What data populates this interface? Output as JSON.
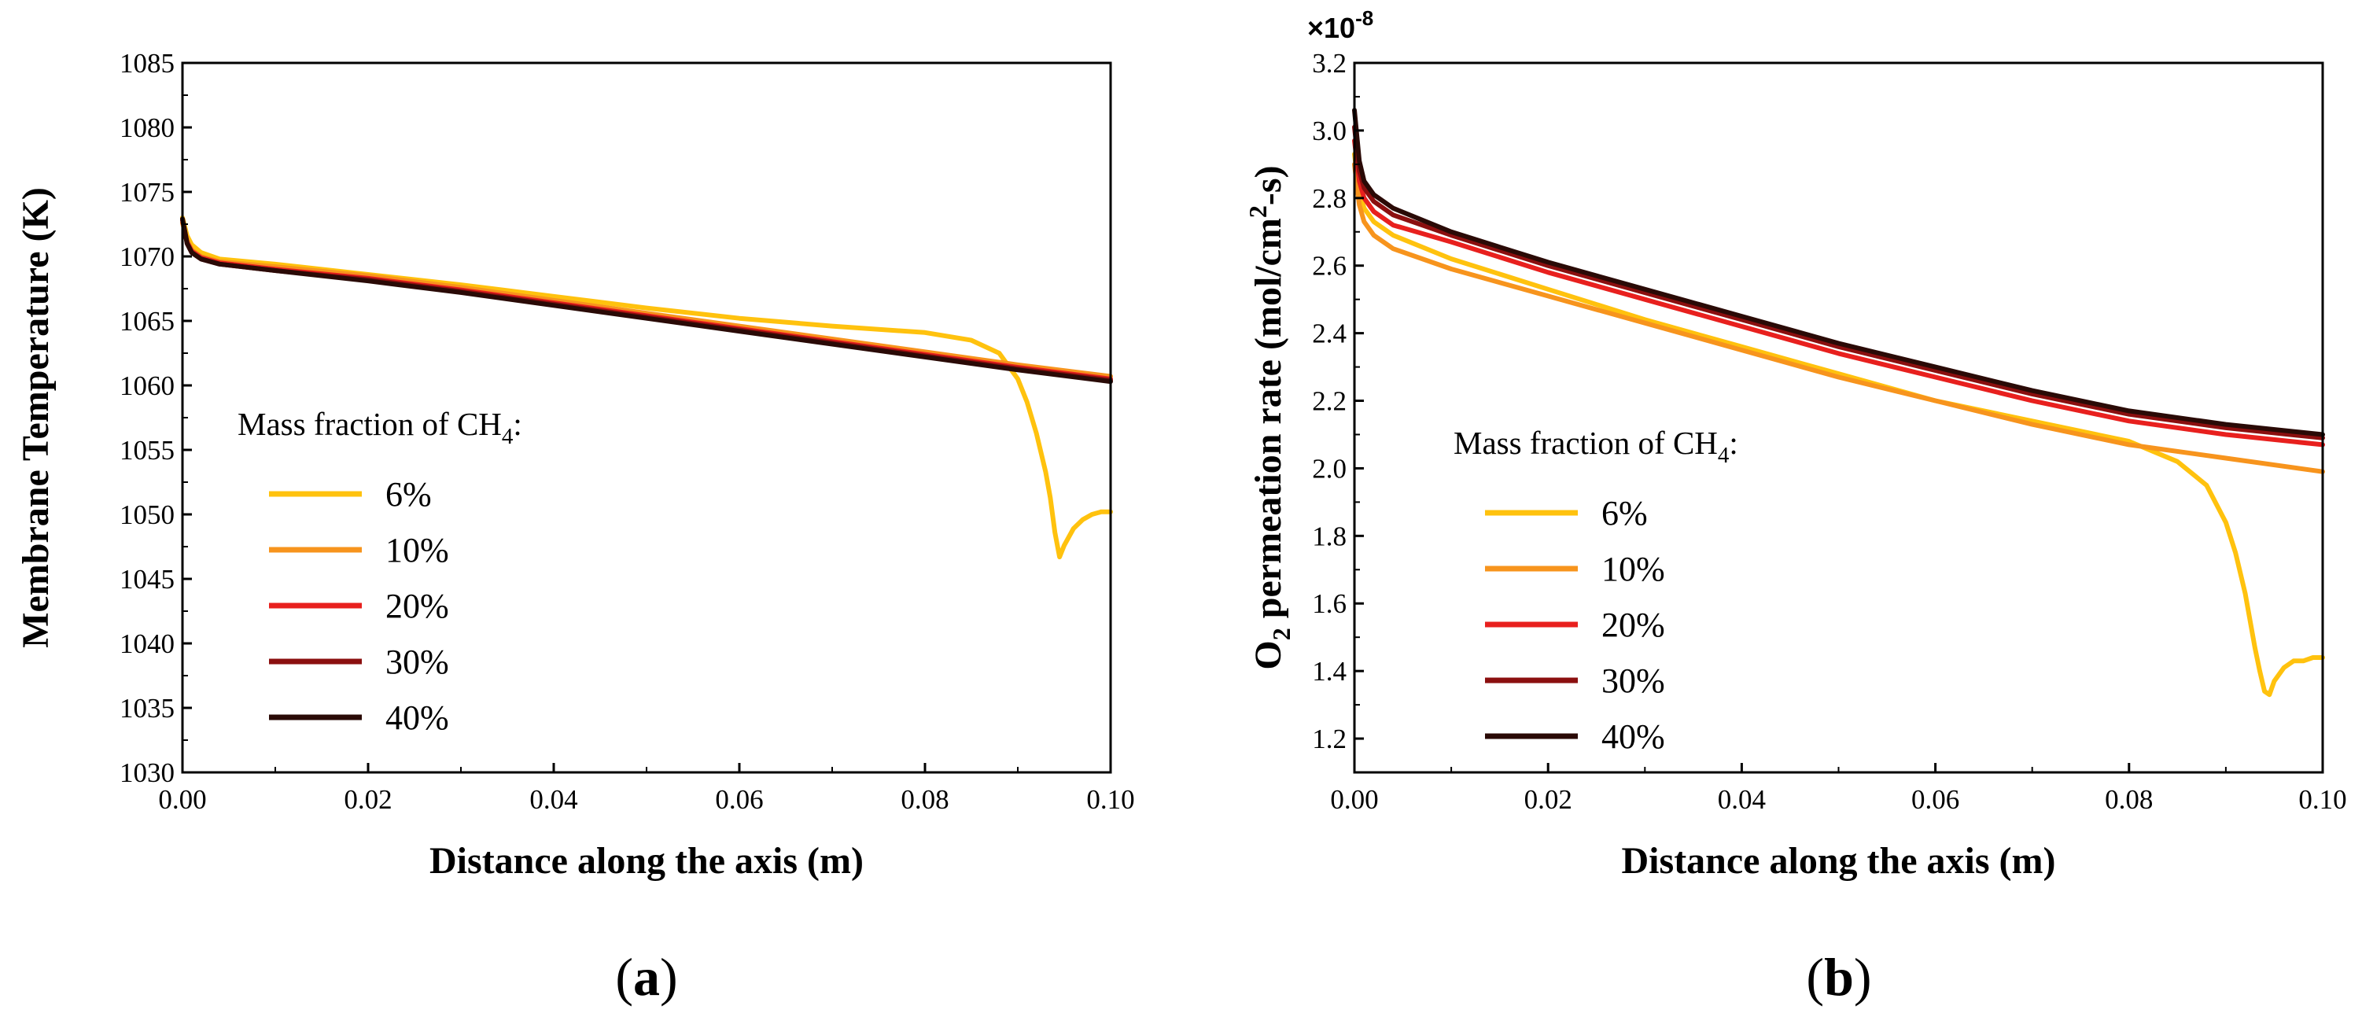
{
  "chart_data": [
    {
      "type": "line",
      "panel_label": "(a)",
      "xlabel": "Distance along the axis (m)",
      "ylabel": "Membrane Temperature (K)",
      "xlim": [
        0,
        0.1
      ],
      "ylim": [
        1030,
        1085
      ],
      "xticks": [
        0,
        0.02,
        0.04,
        0.06,
        0.08,
        0.1
      ],
      "xtick_labels": [
        "0.00",
        "0.02",
        "0.04",
        "0.06",
        "0.08",
        "0.10"
      ],
      "yticks": [
        1030,
        1035,
        1040,
        1045,
        1050,
        1055,
        1060,
        1065,
        1070,
        1075,
        1080,
        1085
      ],
      "ytick_labels": [
        "1030",
        "1035",
        "1040",
        "1045",
        "1050",
        "1055",
        "1060",
        "1065",
        "1070",
        "1075",
        "1080",
        "1085"
      ],
      "legend_title": "Mass fraction of CH",
      "legend_title_sub": "4",
      "legend_title_suffix": ":",
      "legend_position": "lower-left",
      "grid": false,
      "series": [
        {
          "name": "6%",
          "color": "#FFC20E",
          "x": [
            0,
            0.0005,
            0.001,
            0.002,
            0.004,
            0.01,
            0.02,
            0.03,
            0.04,
            0.05,
            0.06,
            0.07,
            0.08,
            0.085,
            0.088,
            0.09,
            0.091,
            0.092,
            0.093,
            0.0935,
            0.094,
            0.0945,
            0.095,
            0.096,
            0.097,
            0.098,
            0.099,
            0.1
          ],
          "y": [
            1073.0,
            1071.6,
            1070.9,
            1070.3,
            1069.8,
            1069.4,
            1068.6,
            1067.8,
            1066.9,
            1066.0,
            1065.2,
            1064.6,
            1064.1,
            1063.5,
            1062.5,
            1060.5,
            1058.7,
            1056.3,
            1053.3,
            1051.3,
            1048.6,
            1046.7,
            1047.6,
            1048.9,
            1049.6,
            1050.0,
            1050.2,
            1050.2
          ]
        },
        {
          "name": "10%",
          "color": "#F7941D",
          "x": [
            0,
            0.0005,
            0.001,
            0.002,
            0.004,
            0.01,
            0.02,
            0.03,
            0.04,
            0.05,
            0.06,
            0.07,
            0.08,
            0.09,
            0.1
          ],
          "y": [
            1072.6,
            1071.2,
            1070.5,
            1070.0,
            1069.6,
            1069.2,
            1068.5,
            1067.6,
            1066.6,
            1065.6,
            1064.6,
            1063.6,
            1062.6,
            1061.6,
            1060.7
          ]
        },
        {
          "name": "20%",
          "color": "#E8201E",
          "x": [
            0,
            0.0005,
            0.001,
            0.002,
            0.004,
            0.01,
            0.02,
            0.03,
            0.04,
            0.05,
            0.06,
            0.07,
            0.08,
            0.09,
            0.1
          ],
          "y": [
            1072.8,
            1071.1,
            1070.4,
            1069.9,
            1069.5,
            1069.0,
            1068.3,
            1067.4,
            1066.4,
            1065.4,
            1064.4,
            1063.4,
            1062.4,
            1061.4,
            1060.5
          ]
        },
        {
          "name": "30%",
          "color": "#8B0F0F",
          "x": [
            0,
            0.0005,
            0.001,
            0.002,
            0.004,
            0.01,
            0.02,
            0.03,
            0.04,
            0.05,
            0.06,
            0.07,
            0.08,
            0.09,
            0.1
          ],
          "y": [
            1072.9,
            1071.0,
            1070.3,
            1069.8,
            1069.4,
            1068.9,
            1068.2,
            1067.3,
            1066.3,
            1065.3,
            1064.3,
            1063.3,
            1062.3,
            1061.3,
            1060.4
          ]
        },
        {
          "name": "40%",
          "color": "#2A0A06",
          "x": [
            0,
            0.0005,
            0.001,
            0.002,
            0.004,
            0.01,
            0.02,
            0.03,
            0.04,
            0.05,
            0.06,
            0.07,
            0.08,
            0.09,
            0.1
          ],
          "y": [
            1072.9,
            1071.0,
            1070.3,
            1069.8,
            1069.4,
            1068.9,
            1068.1,
            1067.2,
            1066.2,
            1065.2,
            1064.2,
            1063.2,
            1062.2,
            1061.2,
            1060.3
          ]
        }
      ]
    },
    {
      "type": "line",
      "panel_label": "(b)",
      "xlabel": "Distance along the axis (m)",
      "ylabel": "O2 permeation rate (mol/cm2-s)",
      "ylabel_parts": {
        "a": "O",
        "b": "2",
        "c": " permeation rate (mol/cm",
        "d": "2",
        "e": "-s)"
      },
      "y_multiplier": "×10",
      "y_multiplier_exp": "-8",
      "xlim": [
        0,
        0.1
      ],
      "ylim": [
        1.1,
        3.2
      ],
      "xticks": [
        0,
        0.02,
        0.04,
        0.06,
        0.08,
        0.1
      ],
      "xtick_labels": [
        "0.00",
        "0.02",
        "0.04",
        "0.06",
        "0.08",
        "0.10"
      ],
      "yticks": [
        1.2,
        1.4,
        1.6,
        1.8,
        2.0,
        2.2,
        2.4,
        2.6,
        2.8,
        3.0,
        3.2
      ],
      "ytick_labels": [
        "1.2",
        "1.4",
        "1.6",
        "1.8",
        "2.0",
        "2.2",
        "2.4",
        "2.6",
        "2.8",
        "3.0",
        "3.2"
      ],
      "legend_title": "Mass fraction of CH",
      "legend_title_sub": "4",
      "legend_title_suffix": ":",
      "legend_position": "lower-left",
      "grid": false,
      "series": [
        {
          "name": "6%",
          "color": "#FFC20E",
          "x": [
            0,
            0.0005,
            0.001,
            0.002,
            0.004,
            0.01,
            0.02,
            0.03,
            0.04,
            0.05,
            0.06,
            0.07,
            0.08,
            0.085,
            0.088,
            0.09,
            0.091,
            0.092,
            0.093,
            0.0935,
            0.094,
            0.0945,
            0.095,
            0.096,
            0.097,
            0.098,
            0.099,
            0.1
          ],
          "y": [
            2.93,
            2.82,
            2.77,
            2.73,
            2.69,
            2.62,
            2.53,
            2.44,
            2.36,
            2.28,
            2.2,
            2.14,
            2.08,
            2.02,
            1.95,
            1.84,
            1.75,
            1.63,
            1.47,
            1.4,
            1.34,
            1.33,
            1.37,
            1.41,
            1.43,
            1.43,
            1.44,
            1.44
          ]
        },
        {
          "name": "10%",
          "color": "#F7941D",
          "x": [
            0,
            0.0005,
            0.001,
            0.002,
            0.004,
            0.01,
            0.02,
            0.03,
            0.04,
            0.05,
            0.06,
            0.07,
            0.08,
            0.09,
            0.1
          ],
          "y": [
            2.9,
            2.78,
            2.73,
            2.69,
            2.65,
            2.59,
            2.51,
            2.43,
            2.35,
            2.27,
            2.2,
            2.13,
            2.07,
            2.03,
            1.99
          ]
        },
        {
          "name": "20%",
          "color": "#E8201E",
          "x": [
            0,
            0.0005,
            0.001,
            0.002,
            0.004,
            0.01,
            0.02,
            0.03,
            0.04,
            0.05,
            0.06,
            0.07,
            0.08,
            0.09,
            0.1
          ],
          "y": [
            2.97,
            2.85,
            2.8,
            2.76,
            2.72,
            2.67,
            2.58,
            2.5,
            2.42,
            2.34,
            2.27,
            2.2,
            2.14,
            2.1,
            2.07
          ]
        },
        {
          "name": "30%",
          "color": "#8B0F0F",
          "x": [
            0,
            0.0005,
            0.001,
            0.002,
            0.004,
            0.01,
            0.02,
            0.03,
            0.04,
            0.05,
            0.06,
            0.07,
            0.08,
            0.09,
            0.1
          ],
          "y": [
            3.01,
            2.88,
            2.83,
            2.79,
            2.75,
            2.69,
            2.6,
            2.52,
            2.44,
            2.36,
            2.29,
            2.22,
            2.16,
            2.12,
            2.09
          ]
        },
        {
          "name": "40%",
          "color": "#2A0A06",
          "x": [
            0,
            0.0005,
            0.001,
            0.002,
            0.004,
            0.01,
            0.02,
            0.03,
            0.04,
            0.05,
            0.06,
            0.07,
            0.08,
            0.09,
            0.1
          ],
          "y": [
            3.06,
            2.91,
            2.85,
            2.81,
            2.77,
            2.7,
            2.61,
            2.53,
            2.45,
            2.37,
            2.3,
            2.23,
            2.17,
            2.13,
            2.1
          ]
        }
      ]
    }
  ]
}
